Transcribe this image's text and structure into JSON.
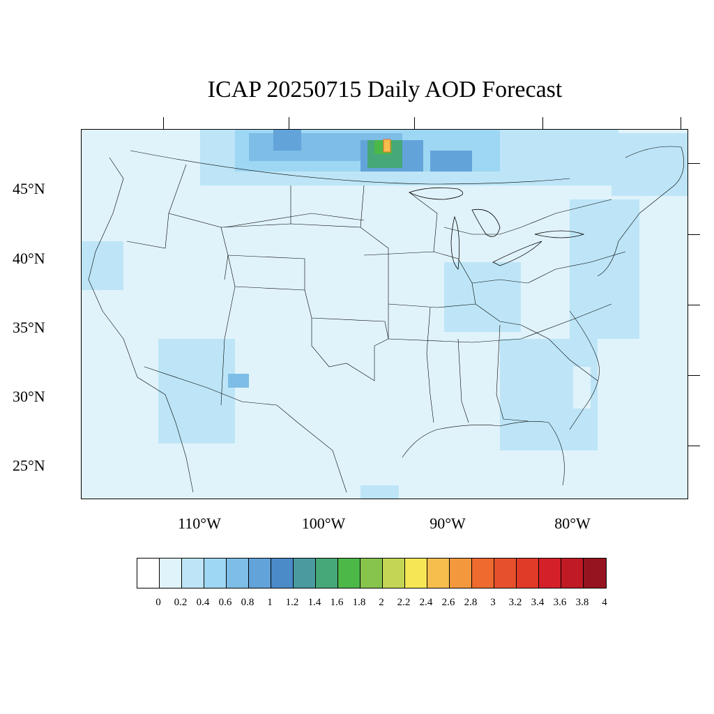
{
  "title": "ICAP 20250715 Daily AOD Forecast",
  "map": {
    "lat_labels": [
      "45°N",
      "40°N",
      "35°N",
      "30°N",
      "25°N"
    ],
    "lon_labels": [
      "110°W",
      "100°W",
      "90°W",
      "80°W"
    ]
  },
  "colorbar": {
    "labels": [
      "0",
      "0.2",
      "0.4",
      "0.6",
      "0.8",
      "1",
      "1.2",
      "1.4",
      "1.6",
      "1.8",
      "2",
      "2.2",
      "2.4",
      "2.6",
      "2.8",
      "3",
      "3.2",
      "3.4",
      "3.6",
      "3.8",
      "4"
    ],
    "colors": [
      "#ffffff",
      "#e0f3fb",
      "#bde5f7",
      "#9ed7f3",
      "#7dbde6",
      "#62a3d9",
      "#4a8bc8",
      "#4a9aa0",
      "#46a878",
      "#4cb848",
      "#86c44c",
      "#c4d454",
      "#f6e656",
      "#f6be4c",
      "#f4983e",
      "#ee6a2e",
      "#e6502c",
      "#e03a28",
      "#d42028",
      "#c01a24",
      "#961420"
    ]
  }
}
